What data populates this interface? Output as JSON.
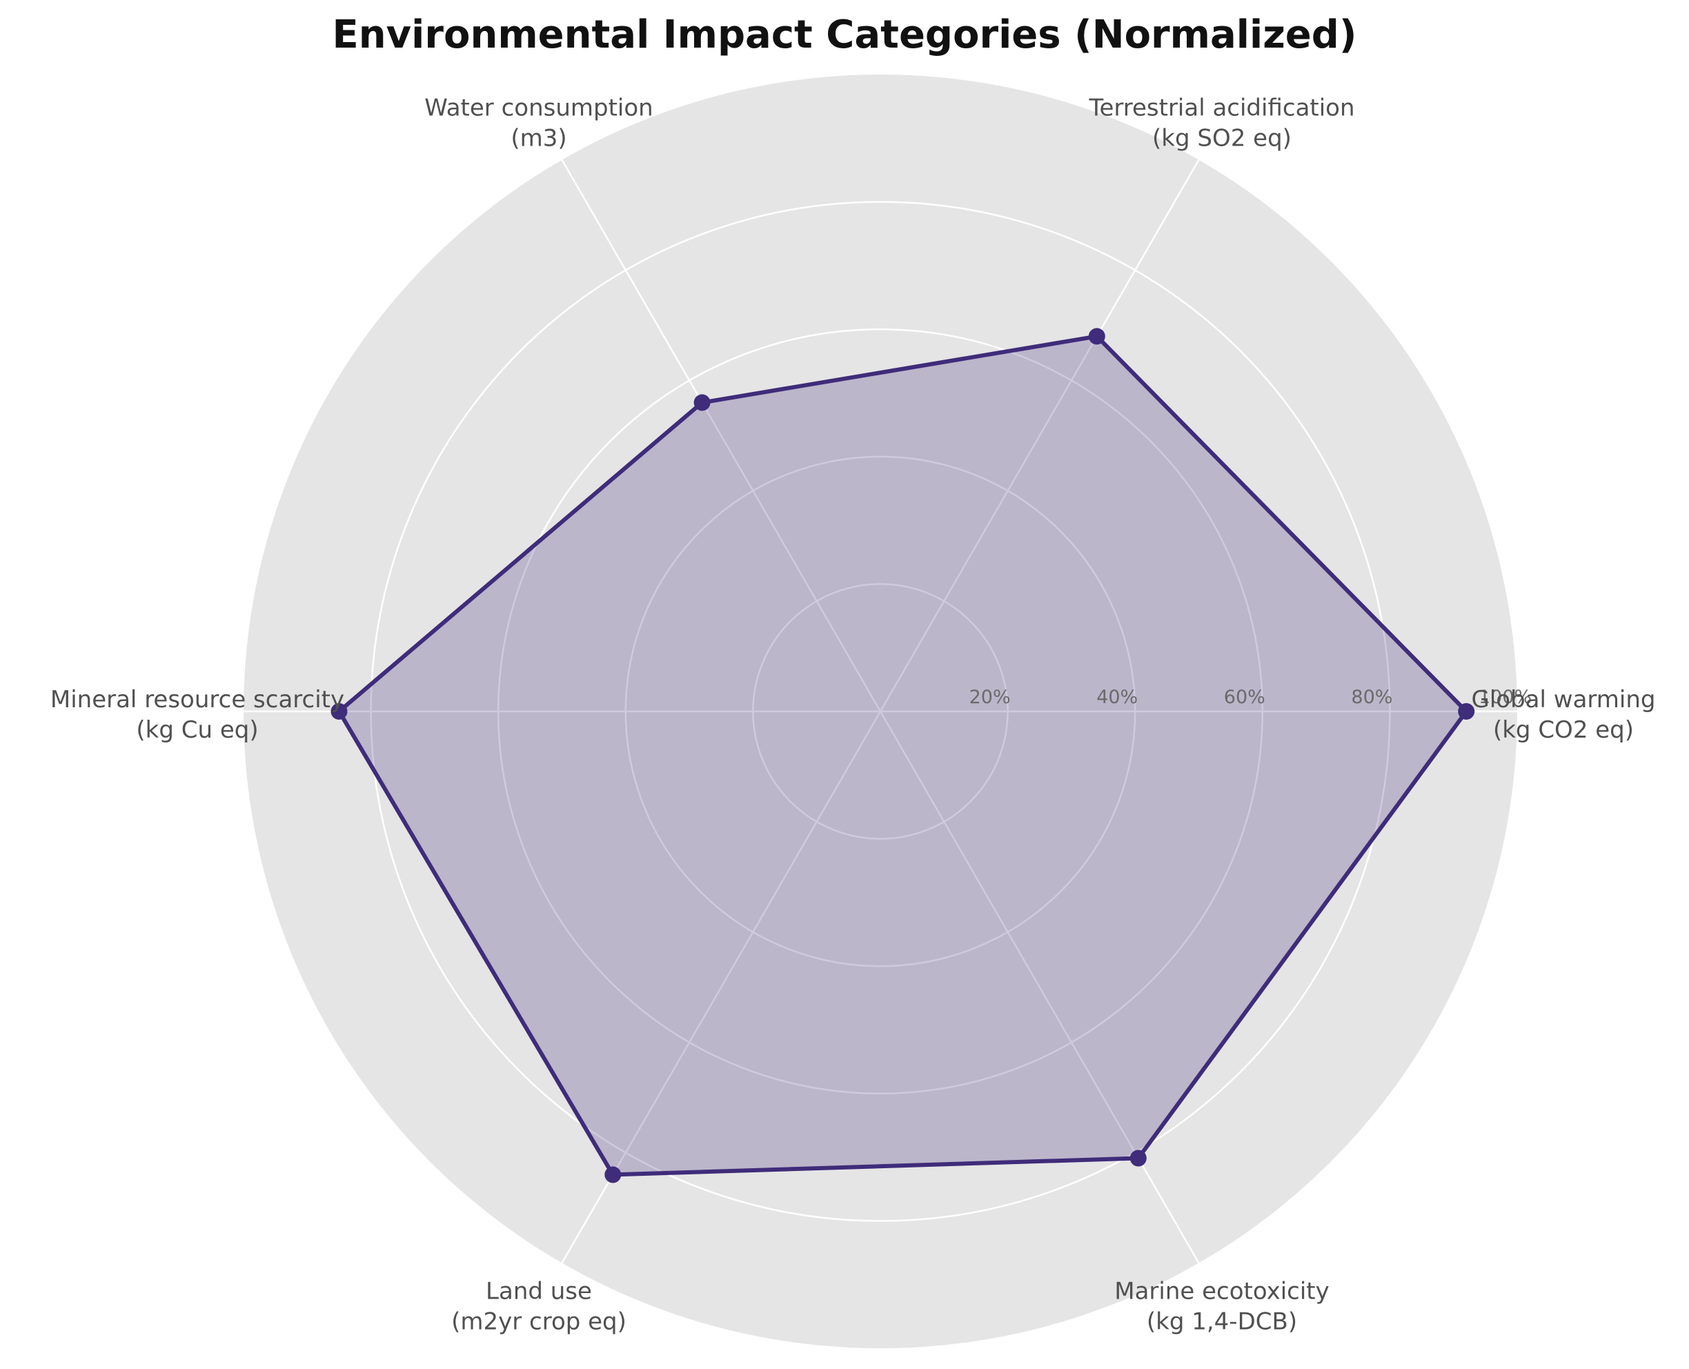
{
  "chart_data": {
    "type": "radar",
    "title": "Environmental Impact Categories (Normalized)",
    "categories": [
      [
        "Global warming",
        "(kg CO2 eq)"
      ],
      [
        "Terrestrial acidification",
        "(kg SO2 eq)"
      ],
      [
        "Water consumption",
        "(m3)"
      ],
      [
        "Mineral resource scarcity",
        "(kg Cu eq)"
      ],
      [
        "Land use",
        "(m2yr crop eq)"
      ],
      [
        "Marine ecotoxicity",
        "(kg 1,4-DCB)"
      ]
    ],
    "values": [
      92,
      68,
      56,
      85,
      84,
      81
    ],
    "rlim": [
      0,
      100
    ],
    "radial_ticks": [
      20,
      40,
      60,
      80,
      100
    ],
    "radial_tick_labels": [
      "20%",
      "40%",
      "60%",
      "80%",
      "100%"
    ],
    "grid": true,
    "colors": {
      "line": "#3f2c7a",
      "fill": "#3f2c7a",
      "fill_opacity": 0.25,
      "background": "#e5e5e5",
      "grid": "#ffffff"
    }
  }
}
